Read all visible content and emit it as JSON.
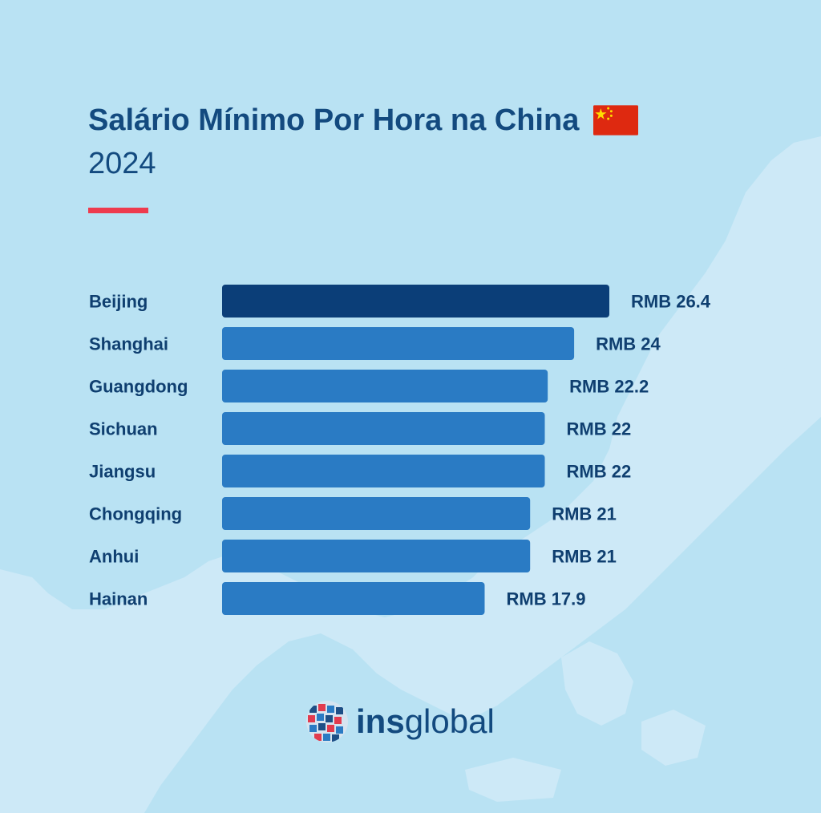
{
  "header": {
    "title": "Salário Mínimo Por Hora na China",
    "subtitle": "2024"
  },
  "flag_icon": "china-flag-icon",
  "colors": {
    "background": "#b9e2f3",
    "land": "#cde9f7",
    "title": "#134a7f",
    "accent_line": "#ee3b4e",
    "highlight_bar": "#0b3e78",
    "bar": "#2a7bc4",
    "label": "#0f3f70"
  },
  "chart_data": {
    "type": "bar",
    "orientation": "horizontal",
    "title": "Salário Mínimo Por Hora na China",
    "subtitle": "2024",
    "xlabel": "",
    "ylabel": "",
    "categories": [
      "Beijing",
      "Shanghai",
      "Guangdong",
      "Sichuan",
      "Jiangsu",
      "Chongqing",
      "Anhui",
      "Hainan"
    ],
    "values": [
      26.4,
      24,
      22.2,
      22,
      22,
      21,
      21,
      17.9
    ],
    "value_labels": [
      "RMB 26.4",
      "RMB 24",
      "RMB 22.2",
      "RMB 22",
      "RMB 22",
      "RMB 21",
      "RMB 21",
      "RMB 17.9"
    ],
    "highlight_index": 0,
    "xlim": [
      0,
      26.4
    ],
    "grid": false
  },
  "logo": {
    "icon": "insglobal-globe-icon",
    "bold": "ins",
    "light": "global"
  }
}
